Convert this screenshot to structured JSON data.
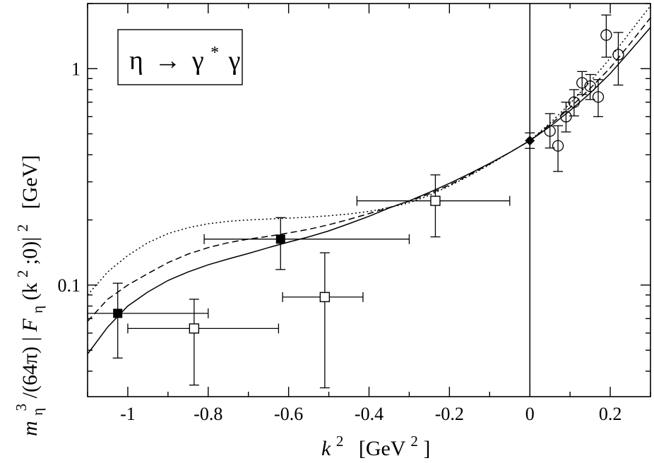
{
  "chart_data": {
    "type": "scatter",
    "title": "",
    "xlabel": {
      "base": "k",
      "sup": "2",
      "unit_pre": "[GeV",
      "unit_sup": "2",
      "unit_post": "]"
    },
    "ylabel": {
      "m": "m",
      "m_sub": "η",
      "m_sup": "3",
      "rest": "/(64π) |",
      "F": "F",
      "F_sub": "η",
      "F_args_pre": "(k",
      "F_args_sup": "2",
      "F_args_post": ";0)|",
      "abs_sup": "2",
      "unit": "[GeV]"
    },
    "legend_box": {
      "lhs": "η",
      "arrow": "→",
      "g1": "γ",
      "g1_sup": "*",
      "g2": "γ",
      "placement": "top-left"
    },
    "xlim": [
      -1.1,
      0.3
    ],
    "ylim": [
      0.0305,
      2.0
    ],
    "y_scale": "log",
    "vertical_line_x": 0,
    "x_ticks": [
      {
        "value": -1.0,
        "label": "-1"
      },
      {
        "value": -0.8,
        "label": "-0.8"
      },
      {
        "value": -0.6,
        "label": "-0.6"
      },
      {
        "value": -0.4,
        "label": "-0.4"
      },
      {
        "value": -0.2,
        "label": "-0.2"
      },
      {
        "value": 0.0,
        "label": "0"
      },
      {
        "value": 0.2,
        "label": "0.2"
      }
    ],
    "x_minor_ticks": [
      -1.1,
      -0.9,
      -0.7,
      -0.5,
      -0.3,
      -0.1,
      0.1,
      0.3
    ],
    "y_ticks": [
      {
        "value": 0.1,
        "label": "0.1"
      },
      {
        "value": 1.0,
        "label": "1"
      }
    ],
    "y_minor_ticks": [
      0.04,
      0.05,
      0.06,
      0.07,
      0.08,
      0.09,
      0.2,
      0.3,
      0.4,
      0.5,
      0.6,
      0.7,
      0.8,
      0.9,
      2.0
    ],
    "series": [
      {
        "marker": "filled-square",
        "points": [
          {
            "x": -1.025,
            "y": 0.074,
            "xlo": -1.1,
            "xhi": -0.8,
            "ylo": 0.046,
            "yhi": 0.102
          },
          {
            "x": -0.62,
            "y": 0.163,
            "xlo": -0.81,
            "xhi": -0.3,
            "ylo": 0.118,
            "yhi": 0.205
          }
        ]
      },
      {
        "marker": "open-square",
        "points": [
          {
            "x": -0.835,
            "y": 0.063,
            "xlo": -1.0,
            "xhi": -0.625,
            "ylo": 0.0345,
            "yhi": 0.086
          },
          {
            "x": -0.51,
            "y": 0.088,
            "xlo": -0.615,
            "xhi": -0.415,
            "ylo": 0.0335,
            "yhi": 0.141
          },
          {
            "x": -0.235,
            "y": 0.245,
            "xlo": -0.43,
            "xhi": -0.05,
            "ylo": 0.167,
            "yhi": 0.323
          }
        ]
      },
      {
        "marker": "filled-diamond",
        "points": [
          {
            "x": 0.0,
            "y": 0.465,
            "ylo": 0.428,
            "yhi": 0.505
          }
        ]
      },
      {
        "marker": "open-circle",
        "points": [
          {
            "x": 0.05,
            "y": 0.515,
            "ylo": 0.43,
            "yhi": 0.62
          },
          {
            "x": 0.07,
            "y": 0.44,
            "ylo": 0.335,
            "yhi": 0.545
          },
          {
            "x": 0.09,
            "y": 0.6,
            "ylo": 0.51,
            "yhi": 0.7
          },
          {
            "x": 0.11,
            "y": 0.7,
            "ylo": 0.605,
            "yhi": 0.8
          },
          {
            "x": 0.13,
            "y": 0.86,
            "ylo": 0.76,
            "yhi": 0.97
          },
          {
            "x": 0.15,
            "y": 0.83,
            "ylo": 0.72,
            "yhi": 0.94
          },
          {
            "x": 0.17,
            "y": 0.74,
            "ylo": 0.6,
            "yhi": 0.89
          },
          {
            "x": 0.19,
            "y": 1.43,
            "ylo": 1.13,
            "yhi": 1.77
          },
          {
            "x": 0.22,
            "y": 1.16,
            "ylo": 0.84,
            "yhi": 1.47
          }
        ]
      }
    ],
    "curves": [
      {
        "style": "solid",
        "points": [
          [
            -1.1,
            0.048
          ],
          [
            -1.05,
            0.064
          ],
          [
            -1.0,
            0.08
          ],
          [
            -0.95,
            0.093
          ],
          [
            -0.9,
            0.105
          ],
          [
            -0.85,
            0.115
          ],
          [
            -0.8,
            0.124
          ],
          [
            -0.75,
            0.132
          ],
          [
            -0.7,
            0.14
          ],
          [
            -0.65,
            0.149
          ],
          [
            -0.6,
            0.158
          ],
          [
            -0.55,
            0.167
          ],
          [
            -0.5,
            0.178
          ],
          [
            -0.45,
            0.192
          ],
          [
            -0.4,
            0.208
          ],
          [
            -0.35,
            0.227
          ],
          [
            -0.3,
            0.245
          ],
          [
            -0.25,
            0.268
          ],
          [
            -0.2,
            0.295
          ],
          [
            -0.15,
            0.327
          ],
          [
            -0.1,
            0.365
          ],
          [
            -0.05,
            0.41
          ],
          [
            0.0,
            0.465
          ],
          [
            0.05,
            0.54
          ],
          [
            0.1,
            0.64
          ],
          [
            0.15,
            0.77
          ],
          [
            0.2,
            0.95
          ],
          [
            0.25,
            1.21
          ],
          [
            0.3,
            1.55
          ]
        ]
      },
      {
        "style": "dashed",
        "points": [
          [
            -1.1,
            0.068
          ],
          [
            -1.05,
            0.086
          ],
          [
            -1.0,
            0.1
          ],
          [
            -0.95,
            0.113
          ],
          [
            -0.9,
            0.127
          ],
          [
            -0.85,
            0.139
          ],
          [
            -0.8,
            0.149
          ],
          [
            -0.75,
            0.157
          ],
          [
            -0.7,
            0.163
          ],
          [
            -0.65,
            0.168
          ],
          [
            -0.6,
            0.174
          ],
          [
            -0.55,
            0.181
          ],
          [
            -0.5,
            0.19
          ],
          [
            -0.45,
            0.201
          ],
          [
            -0.4,
            0.214
          ],
          [
            -0.35,
            0.228
          ],
          [
            -0.3,
            0.244
          ],
          [
            -0.25,
            0.264
          ],
          [
            -0.2,
            0.29
          ],
          [
            -0.15,
            0.323
          ],
          [
            -0.1,
            0.363
          ],
          [
            -0.05,
            0.41
          ],
          [
            0.0,
            0.465
          ],
          [
            0.05,
            0.55
          ],
          [
            0.1,
            0.66
          ],
          [
            0.15,
            0.81
          ],
          [
            0.2,
            1.01
          ],
          [
            0.25,
            1.31
          ],
          [
            0.3,
            1.72
          ]
        ]
      },
      {
        "style": "dotted",
        "points": [
          [
            -1.1,
            0.09
          ],
          [
            -1.05,
            0.115
          ],
          [
            -1.0,
            0.137
          ],
          [
            -0.95,
            0.157
          ],
          [
            -0.9,
            0.173
          ],
          [
            -0.85,
            0.184
          ],
          [
            -0.8,
            0.192
          ],
          [
            -0.75,
            0.197
          ],
          [
            -0.7,
            0.2
          ],
          [
            -0.65,
            0.202
          ],
          [
            -0.6,
            0.204
          ],
          [
            -0.55,
            0.206
          ],
          [
            -0.5,
            0.209
          ],
          [
            -0.45,
            0.213
          ],
          [
            -0.4,
            0.219
          ],
          [
            -0.35,
            0.228
          ],
          [
            -0.3,
            0.24
          ],
          [
            -0.25,
            0.26
          ],
          [
            -0.2,
            0.287
          ],
          [
            -0.15,
            0.32
          ],
          [
            -0.1,
            0.36
          ],
          [
            -0.05,
            0.41
          ],
          [
            0.0,
            0.465
          ],
          [
            0.05,
            0.56
          ],
          [
            0.1,
            0.69
          ],
          [
            0.15,
            0.87
          ],
          [
            0.2,
            1.12
          ],
          [
            0.25,
            1.48
          ],
          [
            0.3,
            1.95
          ]
        ]
      }
    ]
  }
}
